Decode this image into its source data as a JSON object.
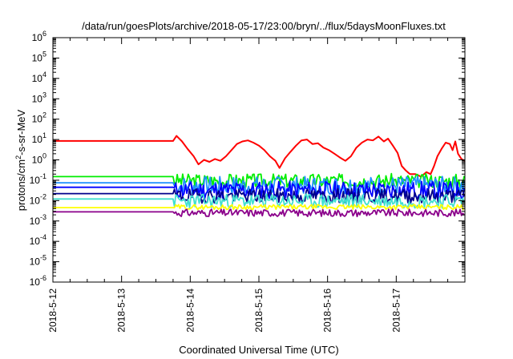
{
  "chart_data": {
    "type": "line",
    "title": "/data/run/goesPlots/archive/2018-05-17/23:00/bryn/../flux/5daysMoonFluxes.txt",
    "xlabel": "Coordinated Universal Time (UTC)",
    "ylabel_prefix": "protons/cm",
    "ylabel_sup": "2",
    "ylabel_suffix": "-s-sr-MeV",
    "y_scale": "log",
    "ylim_exp": [
      -6,
      6
    ],
    "y_tick_exponents": [
      -6,
      -5,
      -4,
      -3,
      -2,
      -1,
      0,
      1,
      2,
      3,
      4,
      5,
      6
    ],
    "xlim": [
      0,
      6
    ],
    "x_ticks": [
      {
        "x": 0,
        "label": "2018-5-12"
      },
      {
        "x": 1,
        "label": "2018-5-13"
      },
      {
        "x": 2,
        "label": "2018-5-14"
      },
      {
        "x": 3,
        "label": "2018-5-15"
      },
      {
        "x": 4,
        "label": "2018-5-16"
      },
      {
        "x": 5,
        "label": "2018-5-17"
      }
    ],
    "grid": false,
    "legend": "none",
    "series": [
      {
        "color": "#ff0000",
        "flat_value": 8.5,
        "start_day": 1.75,
        "points": [
          [
            1.75,
            8.5
          ],
          [
            1.8,
            15
          ],
          [
            1.88,
            8
          ],
          [
            1.96,
            3.5
          ],
          [
            2.05,
            1.5
          ],
          [
            2.12,
            0.6
          ],
          [
            2.2,
            1.0
          ],
          [
            2.28,
            0.8
          ],
          [
            2.36,
            1.1
          ],
          [
            2.44,
            0.9
          ],
          [
            2.52,
            1.5
          ],
          [
            2.6,
            3
          ],
          [
            2.68,
            6
          ],
          [
            2.76,
            8
          ],
          [
            2.84,
            9
          ],
          [
            2.92,
            7
          ],
          [
            3.0,
            5
          ],
          [
            3.08,
            3
          ],
          [
            3.16,
            1.5
          ],
          [
            3.24,
            0.9
          ],
          [
            3.3,
            0.4
          ],
          [
            3.38,
            1.2
          ],
          [
            3.46,
            2.5
          ],
          [
            3.54,
            5
          ],
          [
            3.62,
            9
          ],
          [
            3.7,
            10
          ],
          [
            3.78,
            6
          ],
          [
            3.86,
            6.5
          ],
          [
            3.94,
            4
          ],
          [
            4.02,
            3
          ],
          [
            4.1,
            2
          ],
          [
            4.18,
            1.3
          ],
          [
            4.26,
            0.9
          ],
          [
            4.34,
            1.5
          ],
          [
            4.42,
            4
          ],
          [
            4.5,
            7
          ],
          [
            4.58,
            10
          ],
          [
            4.66,
            9
          ],
          [
            4.74,
            14
          ],
          [
            4.82,
            8
          ],
          [
            4.88,
            11
          ],
          [
            4.95,
            5
          ],
          [
            5.02,
            2.2
          ],
          [
            5.08,
            0.5
          ],
          [
            5.14,
            0.3
          ],
          [
            5.2,
            0.2
          ],
          [
            5.28,
            0.2
          ],
          [
            5.36,
            0.15
          ],
          [
            5.44,
            0.25
          ],
          [
            5.5,
            0.2
          ],
          [
            5.55,
            0.5
          ],
          [
            5.6,
            1.5
          ],
          [
            5.66,
            3.5
          ],
          [
            5.72,
            7
          ],
          [
            5.78,
            6
          ],
          [
            5.82,
            3
          ],
          [
            5.86,
            8
          ],
          [
            5.9,
            2
          ],
          [
            5.95,
            1.1
          ],
          [
            6.0,
            0.9
          ]
        ]
      },
      {
        "color": "#00ee00",
        "flat_value": 0.15,
        "start_day": 1.75,
        "base": 0.095,
        "amp": 0.35,
        "seed": 3
      },
      {
        "color": "#1e90ff",
        "flat_value": 0.075,
        "start_day": 1.75,
        "base": 0.055,
        "amp": 0.45,
        "seed": 7
      },
      {
        "color": "#0000ff",
        "flat_value": 0.045,
        "start_day": 1.75,
        "base": 0.032,
        "amp": 0.45,
        "seed": 11
      },
      {
        "color": "#00008b",
        "flat_value": 0.022,
        "start_day": 1.75,
        "base": 0.017,
        "amp": 0.35,
        "seed": 19
      },
      {
        "color": "#40e0d0",
        "flat_value": 0.012,
        "start_day": 1.75,
        "base": 0.0095,
        "amp": 0.35,
        "seed": 23
      },
      {
        "color": "#ffff00",
        "flat_value": 0.0045,
        "start_day": 1.75,
        "base": 0.0048,
        "amp": 0.12,
        "seed": 29
      },
      {
        "color": "#8b008b",
        "flat_value": 0.0028,
        "start_day": 1.75,
        "base": 0.0025,
        "amp": 0.18,
        "seed": 31
      }
    ]
  }
}
